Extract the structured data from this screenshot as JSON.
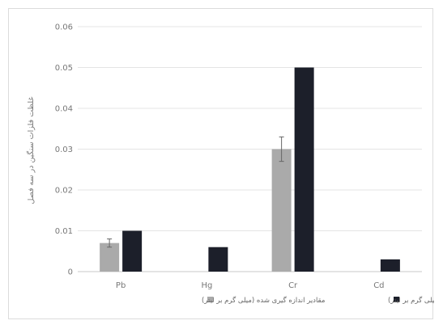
{
  "chart_data": {
    "type": "bar",
    "title": "",
    "ylabel": "غلظت فلزات سنگین در سه فصل",
    "xlabel": "",
    "ylim": [
      0,
      0.06
    ],
    "yticks": [
      "0",
      "0.01",
      "0.02",
      "0.03",
      "0.04",
      "0.05",
      "0.06"
    ],
    "categories": [
      "Pb",
      "Hg",
      "Cr",
      "Cd"
    ],
    "series": [
      {
        "name": "مقادیر اندازه گیری شده (میلی گرم بر لیتر)",
        "color": "#aaaaaa",
        "values": [
          0.007,
          null,
          0.03,
          null
        ],
        "errors": [
          0.001,
          null,
          0.003,
          null
        ]
      },
      {
        "name": "استاندارد ملی (میلی گرم بر لیتر)",
        "color": "#1c1f2a",
        "values": [
          0.01,
          0.006,
          0.05,
          0.003
        ]
      }
    ],
    "grid": true,
    "legend": "bottom"
  }
}
